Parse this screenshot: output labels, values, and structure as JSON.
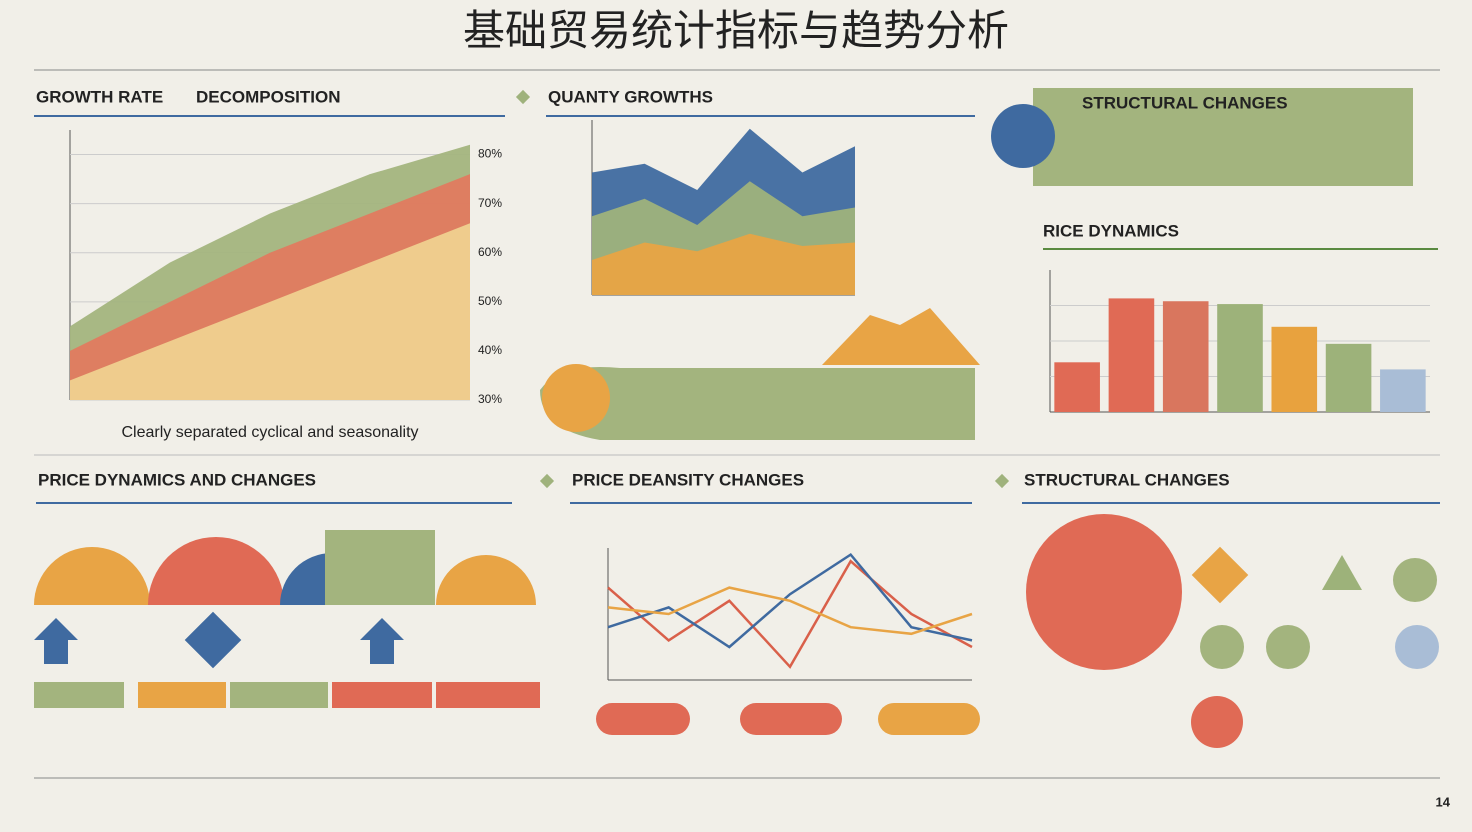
{
  "title": "基础贸易统计指标与趋势分析",
  "headings": [
    "GROWTH RATE",
    "DECOMPOSITION",
    "QUANTY GROWTHS",
    "STRUCTURAL CHANGES",
    "RICE DYNAMICS",
    "PRICE DYNAMICS AND CHANGES",
    "PRICE DEANSITY CHANGES",
    "STRUCTURAL CHANGES"
  ],
  "page_number": "14",
  "chart_data": [
    {
      "type": "area",
      "caption": "Clearly separated cyclical and seasonality",
      "categories": [
        null,
        null,
        null,
        null,
        null
      ],
      "series": [
        {
          "color": "#a3b47e",
          "values": [
            45,
            58,
            68,
            76,
            82
          ]
        },
        {
          "color": "#e07a5f",
          "values": [
            40,
            50,
            60,
            68,
            76
          ]
        },
        {
          "color": "#efd18f",
          "values": [
            34,
            42,
            50,
            58,
            66
          ]
        }
      ],
      "ylim": [
        30,
        85
      ],
      "yticks": [
        {
          "value": 30,
          "label": "30%"
        },
        {
          "value": 40,
          "label": "40%"
        },
        {
          "value": 50,
          "label": "50%"
        },
        {
          "value": 60,
          "label": "60%"
        },
        {
          "value": 70,
          "label": "70%"
        },
        {
          "value": 80,
          "label": "80%"
        }
      ],
      "grid": true
    },
    {
      "type": "area",
      "categories": [
        null,
        null,
        null,
        null,
        null,
        null
      ],
      "series": [
        {
          "color": "#3f6aa0",
          "values": [
            70,
            75,
            60,
            95,
            70,
            85
          ]
        },
        {
          "color": "#9fb27c",
          "values": [
            45,
            55,
            40,
            65,
            45,
            50
          ]
        },
        {
          "color": "#e8a445",
          "values": [
            20,
            30,
            25,
            35,
            28,
            30
          ]
        }
      ],
      "ylim": [
        0,
        100
      ],
      "grid": false
    },
    {
      "type": "bar",
      "categories": [
        null,
        null,
        null,
        null,
        null,
        null,
        null
      ],
      "values": [
        35,
        80,
        78,
        76,
        60,
        48,
        30
      ],
      "colors": [
        "#e06a55",
        "#e06a55",
        "#d9765e",
        "#9db27a",
        "#e8a23e",
        "#9db27a",
        "#a9bdd6"
      ],
      "ylim": [
        0,
        100
      ],
      "grid": true
    },
    {
      "type": "line",
      "categories": [
        null,
        null,
        null,
        null,
        null,
        null,
        null
      ],
      "series": [
        {
          "color": "#d9604a",
          "values": [
            70,
            30,
            60,
            10,
            90,
            50,
            25
          ]
        },
        {
          "color": "#3f6aa0",
          "values": [
            40,
            55,
            25,
            65,
            95,
            40,
            30
          ]
        },
        {
          "color": "#e8a445",
          "values": [
            55,
            50,
            70,
            60,
            40,
            35,
            50
          ]
        }
      ],
      "ylim": [
        0,
        100
      ],
      "grid": false
    }
  ]
}
